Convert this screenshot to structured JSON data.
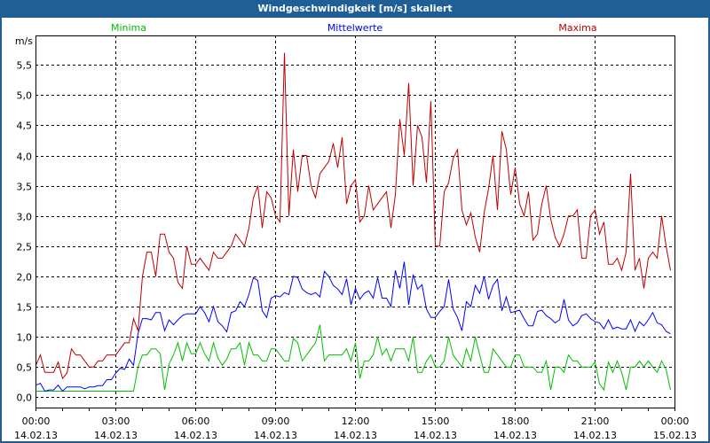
{
  "window": {
    "title": "Windgeschwindigkeit [m/s] skaliert"
  },
  "chart_data": {
    "type": "line",
    "title": "Windgeschwindigkeit [m/s] skaliert",
    "ylabel": "m/s",
    "xlabel": "",
    "ylim": [
      -0.17,
      5.97
    ],
    "xlim": [
      "14.02.13 00:00",
      "15.02.13 00:00"
    ],
    "x_start": "14.02.13 00:00",
    "x_interval_minutes": 10,
    "grid": true,
    "legend_placement": "top",
    "y_ticks": [
      "0,0",
      "0,5",
      "1,0",
      "1,5",
      "2,0",
      "2,5",
      "3,0",
      "3,5",
      "4,0",
      "4,5",
      "5,0",
      "5,5"
    ],
    "y_tick_values": [
      0,
      0.5,
      1,
      1.5,
      2,
      2.5,
      3,
      3.5,
      4,
      4.5,
      5,
      5.5
    ],
    "x_ticks": [
      {
        "time": "00:00",
        "date": "14.02.13"
      },
      {
        "time": "03:00",
        "date": "14.02.13"
      },
      {
        "time": "06:00",
        "date": "14.02.13"
      },
      {
        "time": "09:00",
        "date": "14.02.13"
      },
      {
        "time": "12:00",
        "date": "14.02.13"
      },
      {
        "time": "15:00",
        "date": "14.02.13"
      },
      {
        "time": "18:00",
        "date": "14.02.13"
      },
      {
        "time": "21:00",
        "date": "14.02.13"
      },
      {
        "time": "00:00",
        "date": "15.02.13"
      }
    ],
    "series": [
      {
        "name": "Minima",
        "color": "#00c000",
        "values": [
          0.1,
          0.1,
          0.1,
          0.1,
          0.1,
          0.1,
          0.1,
          0.1,
          0.1,
          0.1,
          0.1,
          0.1,
          0.1,
          0.1,
          0.1,
          0.1,
          0.1,
          0.1,
          0.1,
          0.1,
          0.1,
          0.1,
          0.1,
          0.5,
          0.7,
          0.7,
          0.8,
          0.8,
          0.72,
          0.12,
          0.55,
          0.7,
          0.9,
          0.6,
          0.9,
          0.72,
          0.72,
          0.9,
          0.72,
          0.6,
          0.9,
          0.65,
          0.53,
          0.63,
          0.8,
          0.8,
          0.9,
          0.53,
          0.9,
          0.7,
          0.7,
          0.6,
          0.6,
          0.8,
          0.8,
          0.7,
          0.6,
          0.6,
          0.97,
          0.9,
          0.6,
          0.7,
          0.8,
          0.9,
          1.2,
          0.6,
          0.7,
          0.7,
          0.7,
          0.7,
          0.8,
          0.6,
          0.9,
          0.31,
          0.6,
          0.6,
          0.7,
          1.0,
          0.7,
          0.8,
          0.6,
          0.8,
          0.8,
          0.8,
          0.6,
          1.0,
          0.41,
          0.41,
          0.6,
          0.7,
          0.5,
          0.5,
          0.6,
          1.0,
          0.7,
          0.6,
          0.5,
          0.8,
          0.6,
          1.0,
          0.7,
          0.41,
          0.41,
          0.8,
          0.7,
          0.6,
          0.5,
          0.5,
          0.7,
          0.7,
          0.5,
          0.5,
          0.5,
          0.41,
          0.41,
          0.6,
          0.12,
          0.5,
          0.5,
          0.41,
          0.7,
          0.6,
          0.6,
          0.5,
          0.5,
          0.5,
          0.58,
          0.22,
          0.12,
          0.58,
          0.41,
          0.6,
          0.41,
          0.12,
          0.5,
          0.5,
          0.6,
          0.5,
          0.6,
          0.5,
          0.41,
          0.6,
          0.46,
          0.12
        ]
      },
      {
        "name": "Mittelwerte",
        "color": "#0000ff",
        "values": [
          0.2,
          0.23,
          0.1,
          0.12,
          0.12,
          0.2,
          0.1,
          0.17,
          0.17,
          0.17,
          0.17,
          0.14,
          0.17,
          0.17,
          0.19,
          0.19,
          0.29,
          0.29,
          0.4,
          0.48,
          0.46,
          0.63,
          0.53,
          1.05,
          1.3,
          1.3,
          1.28,
          1.4,
          1.4,
          1.1,
          1.28,
          1.2,
          1.28,
          1.35,
          1.38,
          1.38,
          1.38,
          1.5,
          1.4,
          1.25,
          1.5,
          1.25,
          1.18,
          1.08,
          1.4,
          1.43,
          1.58,
          1.5,
          1.7,
          1.98,
          1.93,
          1.43,
          1.32,
          1.64,
          1.68,
          1.66,
          1.73,
          1.7,
          2.0,
          1.98,
          1.79,
          1.73,
          1.7,
          1.73,
          1.66,
          2.08,
          2.0,
          1.85,
          1.79,
          1.7,
          1.96,
          1.53,
          1.8,
          1.62,
          1.72,
          1.76,
          1.64,
          1.98,
          1.64,
          1.64,
          1.5,
          2.1,
          1.8,
          2.24,
          1.53,
          2.03,
          1.79,
          1.86,
          1.46,
          1.32,
          1.32,
          1.42,
          1.5,
          1.95,
          1.46,
          1.32,
          1.1,
          1.58,
          1.5,
          1.85,
          1.72,
          2.0,
          1.62,
          1.85,
          1.95,
          1.43,
          1.66,
          1.4,
          1.42,
          1.44,
          1.3,
          1.18,
          1.18,
          1.42,
          1.44,
          1.35,
          1.3,
          1.23,
          1.28,
          1.62,
          1.28,
          1.18,
          1.23,
          1.35,
          1.38,
          1.3,
          1.25,
          1.23,
          1.13,
          1.28,
          1.13,
          1.16,
          1.13,
          1.13,
          1.28,
          1.09,
          1.25,
          1.18,
          1.28,
          1.4,
          1.23,
          1.2,
          1.09,
          1.05
        ]
      },
      {
        "name": "Maxima",
        "color": "#c00000",
        "values": [
          0.53,
          0.7,
          0.41,
          0.41,
          0.41,
          0.58,
          0.31,
          0.4,
          0.8,
          0.7,
          0.7,
          0.6,
          0.5,
          0.5,
          0.6,
          0.6,
          0.7,
          0.7,
          0.7,
          0.8,
          0.9,
          0.9,
          1.3,
          1.1,
          2.0,
          2.4,
          2.4,
          2.0,
          2.7,
          2.7,
          2.4,
          2.3,
          1.9,
          1.8,
          2.5,
          2.2,
          2.2,
          2.3,
          2.2,
          2.1,
          2.4,
          2.3,
          2.3,
          2.4,
          2.5,
          2.7,
          2.6,
          2.5,
          2.8,
          3.3,
          3.5,
          2.8,
          3.4,
          3.3,
          3.0,
          2.9,
          5.7,
          3.0,
          4.1,
          3.4,
          4.0,
          4.0,
          3.5,
          3.3,
          3.7,
          3.8,
          3.9,
          4.2,
          3.8,
          4.3,
          3.2,
          3.5,
          3.6,
          2.9,
          3.0,
          3.5,
          3.1,
          3.2,
          3.3,
          3.4,
          2.8,
          3.35,
          4.6,
          4.0,
          5.2,
          3.5,
          4.5,
          4.3,
          3.55,
          4.9,
          2.5,
          2.5,
          3.4,
          3.55,
          3.95,
          4.1,
          3.1,
          2.85,
          3.05,
          2.65,
          2.4,
          3.05,
          3.45,
          4.0,
          3.1,
          4.4,
          4.1,
          3.35,
          3.8,
          3.2,
          3.0,
          3.4,
          2.6,
          2.7,
          3.2,
          3.5,
          2.95,
          2.65,
          2.5,
          2.7,
          3.0,
          3.0,
          3.1,
          2.3,
          2.3,
          3.0,
          3.1,
          2.7,
          2.9,
          2.2,
          2.2,
          2.3,
          2.1,
          2.4,
          3.7,
          2.1,
          2.3,
          1.8,
          2.3,
          2.4,
          2.3,
          3.0,
          2.5,
          2.1
        ]
      }
    ]
  }
}
